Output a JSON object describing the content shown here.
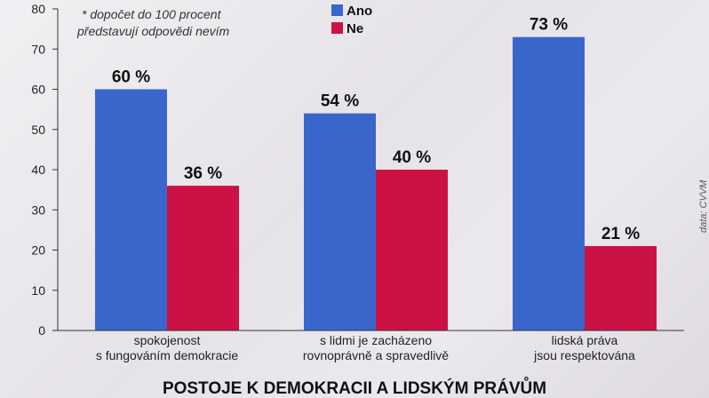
{
  "chart_data": {
    "type": "bar",
    "title": "POSTOJE K DEMOKRACII A LIDSKÝM PRÁVŮM",
    "note_lines": [
      "* dopočet do 100 procent",
      "představují odpovědi nevím"
    ],
    "source": "data: CVVM",
    "categories": [
      [
        "spokojenost",
        "s fungováním demokracie"
      ],
      [
        "s lidmi je zacházeno",
        "rovnoprávně a spravedlivě"
      ],
      [
        "lidská práva",
        "jsou respektována"
      ]
    ],
    "series": [
      {
        "name": "Ano",
        "color": "#3a66cc",
        "values": [
          60,
          54,
          73
        ],
        "labels": [
          "60 %",
          "54 %",
          "73 %"
        ]
      },
      {
        "name": "Ne",
        "color": "#cc1244",
        "values": [
          36,
          40,
          21
        ],
        "labels": [
          "36 %",
          "40 %",
          "21 %"
        ]
      }
    ],
    "y_ticks": [
      "0",
      "10",
      "20",
      "30",
      "40",
      "50",
      "60",
      "70",
      "80"
    ],
    "ylim": [
      0,
      80
    ],
    "grid": false,
    "legend_position": "top-center"
  }
}
